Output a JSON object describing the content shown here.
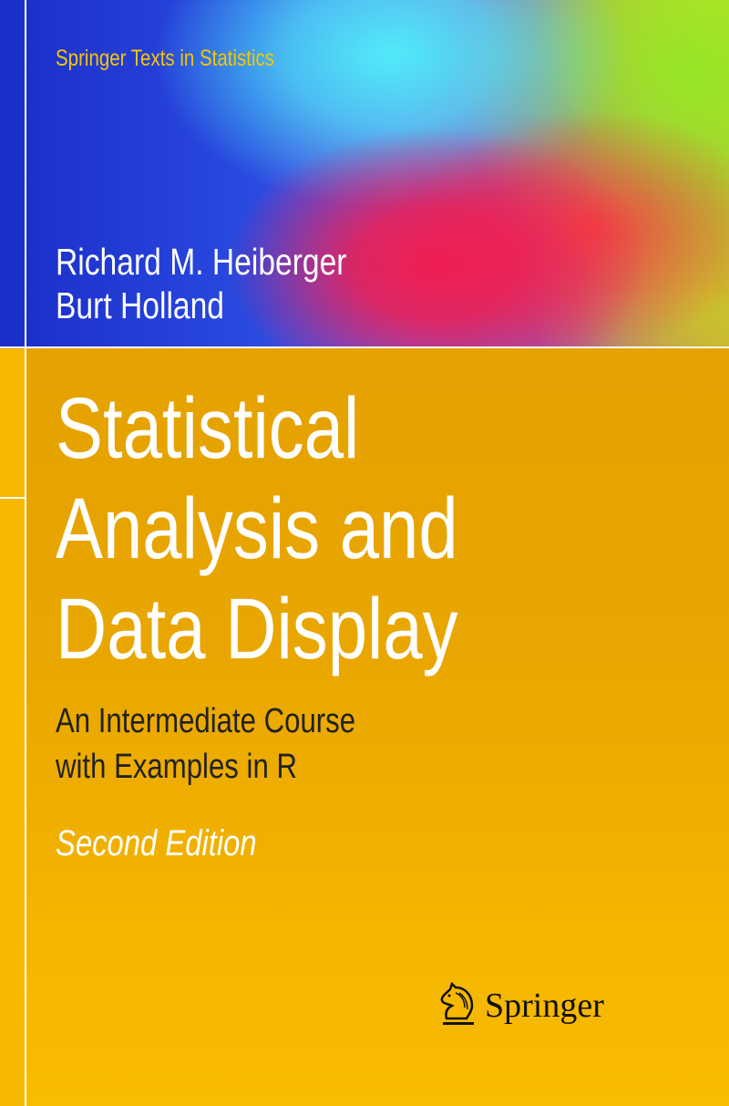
{
  "cover": {
    "series": "Springer Texts in Statistics",
    "authors": [
      "Richard M. Heiberger",
      "Burt Holland"
    ],
    "title_lines": [
      "Statistical",
      "Analysis and",
      "Data Display"
    ],
    "subtitle_lines": [
      "An Intermediate Course",
      "with Examples in R"
    ],
    "edition": "Second Edition",
    "publisher": "Springer",
    "publisher_logo_icon": "knight-horse-icon"
  },
  "colors": {
    "series_text": "#f6c600",
    "lower_panel": "#e9a600",
    "strip": "#f7b800"
  }
}
